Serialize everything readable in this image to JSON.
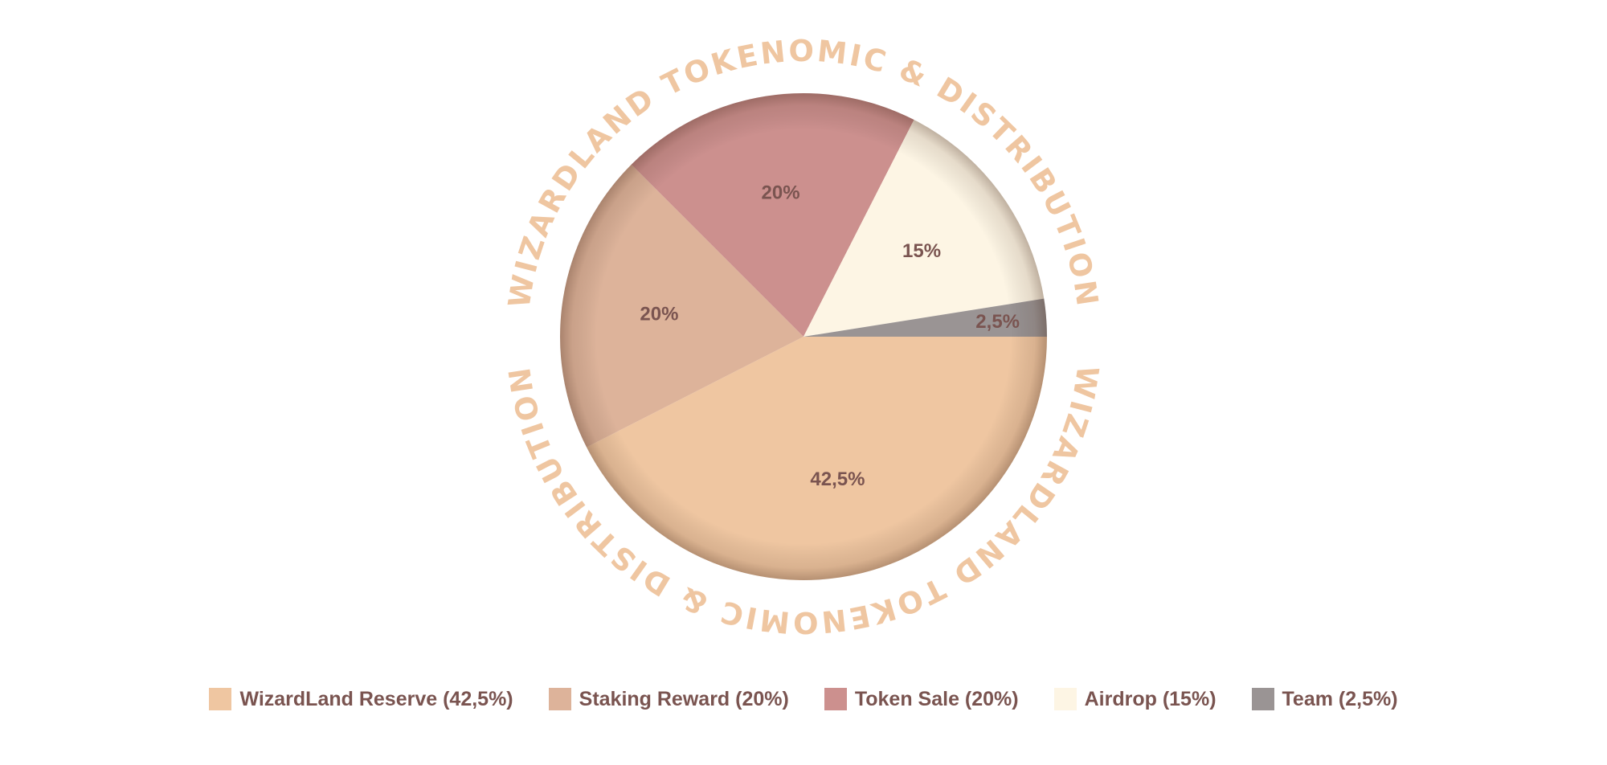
{
  "chart_data": {
    "type": "pie",
    "title": "WIZARDLAND TOKENOMIC & DISTRIBUTION",
    "slices": [
      {
        "name": "WizardLand Reserve",
        "value": 42.5,
        "label": "42,5%",
        "legend": "WizardLand Reserve (42,5%)",
        "color": "#efc6a1"
      },
      {
        "name": "Staking Reward",
        "value": 20,
        "label": "20%",
        "legend": "Staking Reward (20%)",
        "color": "#ddb39a"
      },
      {
        "name": "Token Sale",
        "value": 20,
        "label": "20%",
        "legend": "Token Sale (20%)",
        "color": "#cc908e"
      },
      {
        "name": "Airdrop",
        "value": 15,
        "label": "15%",
        "legend": "Airdrop (15%)",
        "color": "#fdf5e4"
      },
      {
        "name": "Team",
        "value": 2.5,
        "label": "2,5%",
        "legend": "Team (2,5%)",
        "color": "#9a9494"
      }
    ],
    "legend_position": "bottom",
    "ring_text_color": "#efc6a1",
    "label_color": "#7a5450"
  }
}
